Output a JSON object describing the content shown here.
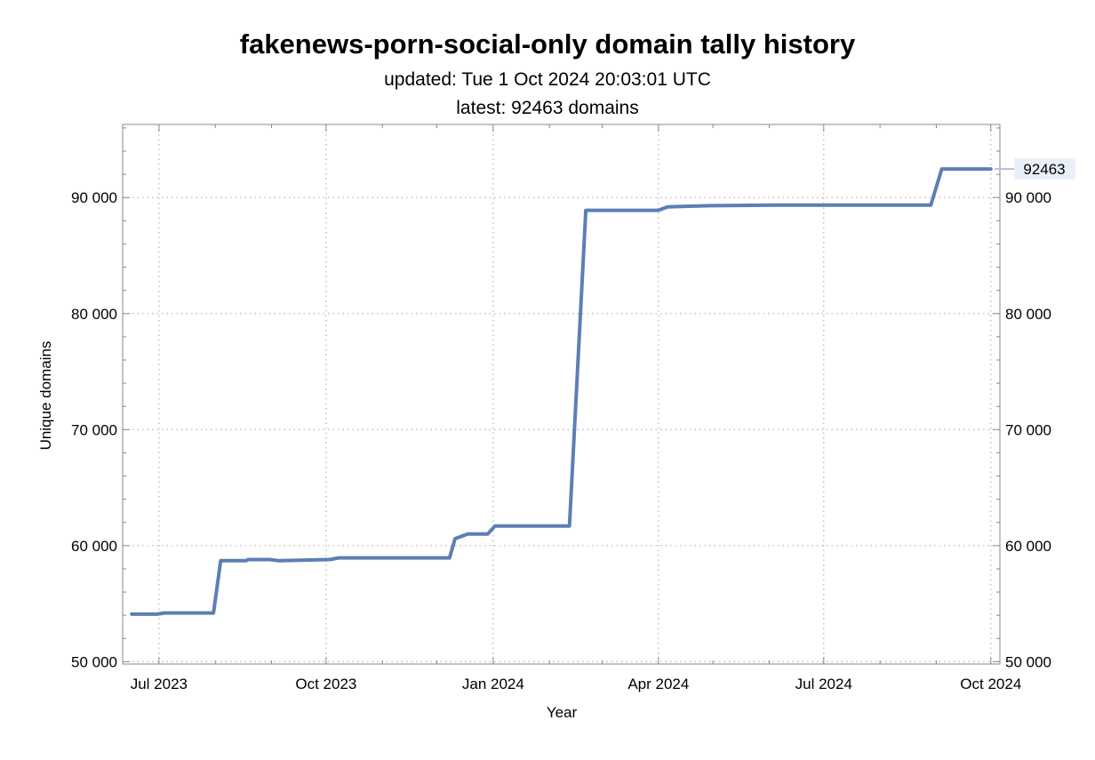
{
  "header": {
    "title": "fakenews-porn-social-only domain tally history",
    "updated": "updated: Tue 1 Oct 2024 20:03:01 UTC",
    "latest": "latest: 92463 domains"
  },
  "chart_data": {
    "type": "line",
    "title": "fakenews-porn-social-only domain tally history",
    "subtitle": [
      "updated: Tue 1 Oct 2024 20:03:01 UTC",
      "latest: 92463 domains"
    ],
    "xlabel": "Year",
    "ylabel": "Unique domains",
    "x_ticks": [
      {
        "date": "2023-07-01",
        "label": "Jul 2023"
      },
      {
        "date": "2023-10-01",
        "label": "Oct 2023"
      },
      {
        "date": "2024-01-01",
        "label": "Jan 2024"
      },
      {
        "date": "2024-04-01",
        "label": "Apr 2024"
      },
      {
        "date": "2024-07-01",
        "label": "Jul 2024"
      },
      {
        "date": "2024-10-01",
        "label": "Oct 2024"
      }
    ],
    "y_ticks": [
      {
        "value": 50000,
        "label": "50 000"
      },
      {
        "value": 60000,
        "label": "60 000"
      },
      {
        "value": 70000,
        "label": "70 000"
      },
      {
        "value": 80000,
        "label": "80 000"
      },
      {
        "value": 90000,
        "label": "90 000"
      }
    ],
    "xlim": [
      "2023-06-11",
      "2024-10-06"
    ],
    "ylim": [
      49800,
      96300
    ],
    "grid": true,
    "series": [
      {
        "color": "#5b7fb5",
        "points": [
          [
            "2023-06-16",
            54100
          ],
          [
            "2023-06-30",
            54100
          ],
          [
            "2023-07-04",
            54200
          ],
          [
            "2023-07-31",
            54200
          ],
          [
            "2023-08-04",
            58700
          ],
          [
            "2023-08-18",
            58700
          ],
          [
            "2023-08-19",
            58800
          ],
          [
            "2023-08-31",
            58800
          ],
          [
            "2023-09-05",
            58700
          ],
          [
            "2023-10-03",
            58800
          ],
          [
            "2023-10-08",
            58950
          ],
          [
            "2023-12-08",
            58950
          ],
          [
            "2023-12-11",
            60600
          ],
          [
            "2023-12-18",
            61000
          ],
          [
            "2023-12-29",
            61000
          ],
          [
            "2024-01-02",
            61700
          ],
          [
            "2024-02-12",
            61700
          ],
          [
            "2024-02-21",
            88900
          ],
          [
            "2024-04-01",
            88900
          ],
          [
            "2024-04-06",
            89200
          ],
          [
            "2024-04-30",
            89300
          ],
          [
            "2024-06-05",
            89350
          ],
          [
            "2024-08-29",
            89350
          ],
          [
            "2024-09-04",
            92463
          ],
          [
            "2024-10-01",
            92463
          ]
        ]
      }
    ],
    "last_value_label": "92463"
  }
}
